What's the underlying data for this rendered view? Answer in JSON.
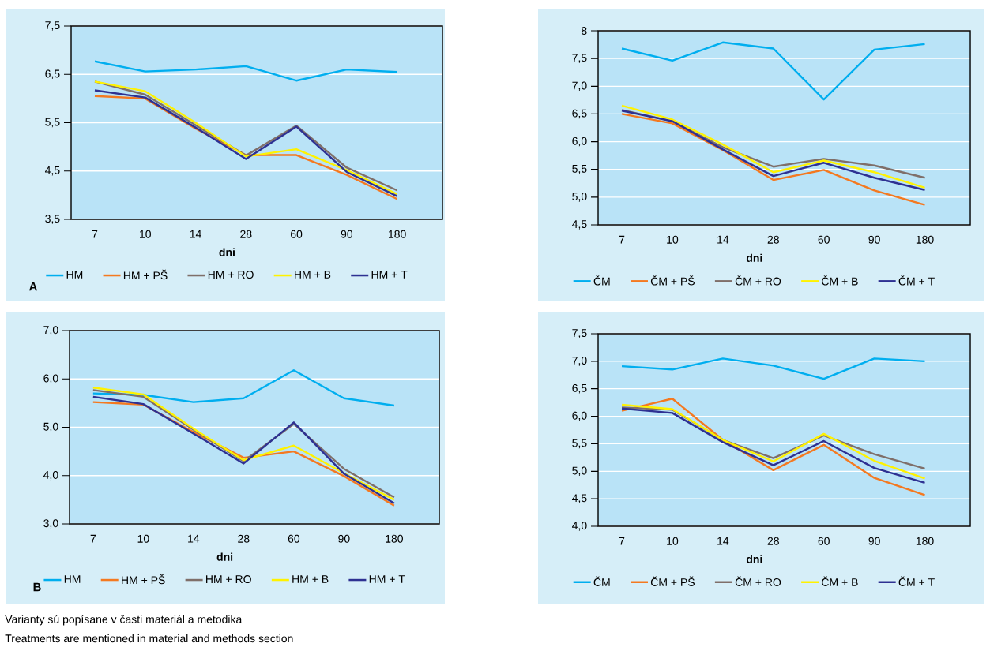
{
  "chart_data": [
    {
      "type": "line",
      "xlabel": "dni",
      "categories": [
        "7",
        "10",
        "14",
        "28",
        "60",
        "90",
        "180"
      ],
      "ylim": [
        3.5,
        7.5
      ],
      "yticks": [
        {
          "value": 3.5,
          "label": "3,5"
        },
        {
          "value": 4.5,
          "label": "4,5"
        },
        {
          "value": 5.5,
          "label": "5,5"
        },
        {
          "value": 6.5,
          "label": "6,5"
        },
        {
          "value": 7.5,
          "label": "7,5"
        }
      ],
      "grid": "y",
      "legend": "bottom",
      "annotations": [
        "A"
      ],
      "series": [
        {
          "name": "HM",
          "color": "#00aeef",
          "values": [
            6.77,
            6.56,
            6.6,
            6.67,
            6.37,
            6.6,
            6.55
          ]
        },
        {
          "name": "HM + PŠ",
          "color": "#f47920",
          "values": [
            6.05,
            6.0,
            5.38,
            4.83,
            4.83,
            4.42,
            3.92
          ]
        },
        {
          "name": "HM + RO",
          "color": "#7f6f6a",
          "values": [
            6.35,
            6.08,
            5.45,
            4.82,
            5.44,
            4.57,
            4.1
          ]
        },
        {
          "name": "HM + B",
          "color": "#fff200",
          "values": [
            6.35,
            6.15,
            5.5,
            4.8,
            4.95,
            4.52,
            4.02
          ]
        },
        {
          "name": "HM + T",
          "color": "#2e3192",
          "values": [
            6.17,
            6.02,
            5.4,
            4.75,
            5.42,
            4.48,
            3.98
          ]
        }
      ]
    },
    {
      "type": "line",
      "xlabel": "dni",
      "categories": [
        "7",
        "10",
        "14",
        "28",
        "60",
        "90",
        "180"
      ],
      "ylim": [
        4.5,
        8
      ],
      "yticks": [
        {
          "value": 4.5,
          "label": "4,5"
        },
        {
          "value": 5,
          "label": "5,0"
        },
        {
          "value": 5.5,
          "label": "5,5"
        },
        {
          "value": 6,
          "label": "6,0"
        },
        {
          "value": 6.5,
          "label": "6,5"
        },
        {
          "value": 7,
          "label": "7,0"
        },
        {
          "value": 7.5,
          "label": "7,5"
        },
        8
      ],
      "grid": "y",
      "legend": "bottom",
      "series": [
        {
          "name": "ČM",
          "color": "#00aeef",
          "values": [
            7.68,
            7.46,
            7.79,
            7.68,
            6.76,
            7.66,
            7.76
          ]
        },
        {
          "name": "ČM + PŠ",
          "color": "#f47920",
          "values": [
            6.5,
            6.33,
            5.85,
            5.31,
            5.49,
            5.12,
            4.86
          ]
        },
        {
          "name": "ČM + RO",
          "color": "#7f6f6a",
          "values": [
            6.57,
            6.37,
            5.9,
            5.55,
            5.69,
            5.57,
            5.35
          ]
        },
        {
          "name": "ČM + B",
          "color": "#fff200",
          "values": [
            6.65,
            6.4,
            5.95,
            5.45,
            5.66,
            5.45,
            5.17
          ]
        },
        {
          "name": "ČM + T",
          "color": "#2e3192",
          "values": [
            6.56,
            6.37,
            5.86,
            5.38,
            5.62,
            5.35,
            5.13
          ]
        }
      ]
    },
    {
      "type": "line",
      "xlabel": "dni",
      "categories": [
        "7",
        "10",
        "14",
        "28",
        "60",
        "90",
        "180"
      ],
      "ylim": [
        3,
        7
      ],
      "yticks": [
        {
          "value": 3,
          "label": "3,0"
        },
        {
          "value": 4,
          "label": "4,0"
        },
        {
          "value": 5,
          "label": "5,0"
        },
        {
          "value": 6,
          "label": "6,0"
        },
        {
          "value": 7,
          "label": "7,0"
        }
      ],
      "grid": "y",
      "legend": "bottom",
      "annotations": [
        "B",
        "Varianty sú popísane v časti materiál a metodika",
        "Treatments are mentioned in material and methods section"
      ],
      "series": [
        {
          "name": "HM",
          "color": "#00aeef",
          "values": [
            5.7,
            5.67,
            5.52,
            5.6,
            6.18,
            5.6,
            5.45
          ]
        },
        {
          "name": "HM + PŠ",
          "color": "#f47920",
          "values": [
            5.52,
            5.47,
            4.9,
            4.37,
            4.5,
            3.99,
            3.38
          ]
        },
        {
          "name": "HM + RO",
          "color": "#7f6f6a",
          "values": [
            5.77,
            5.63,
            4.95,
            4.3,
            5.07,
            4.14,
            3.55
          ]
        },
        {
          "name": "HM + B",
          "color": "#fff200",
          "values": [
            5.82,
            5.68,
            4.97,
            4.32,
            4.62,
            4.05,
            3.5
          ]
        },
        {
          "name": "HM + T",
          "color": "#2e3192",
          "values": [
            5.63,
            5.48,
            4.87,
            4.25,
            5.1,
            4.04,
            3.43
          ]
        }
      ]
    },
    {
      "type": "line",
      "xlabel": "dni",
      "categories": [
        "7",
        "10",
        "14",
        "28",
        "60",
        "90",
        "180"
      ],
      "ylim": [
        4,
        7.5
      ],
      "yticks": [
        {
          "value": 4,
          "label": "4,0"
        },
        {
          "value": 4.5,
          "label": "4,5"
        },
        {
          "value": 5,
          "label": "5,0"
        },
        {
          "value": 5.5,
          "label": "5,5"
        },
        {
          "value": 6,
          "label": "6,0"
        },
        {
          "value": 6.5,
          "label": "6,5"
        },
        {
          "value": 7,
          "label": "7,0"
        },
        {
          "value": 7.5,
          "label": "7,5"
        }
      ],
      "grid": "y",
      "legend": "bottom",
      "series": [
        {
          "name": "ČM",
          "color": "#00aeef",
          "values": [
            6.91,
            6.85,
            7.05,
            6.92,
            6.68,
            7.05,
            7.0
          ]
        },
        {
          "name": "ČM + PŠ",
          "color": "#f47920",
          "values": [
            6.1,
            6.32,
            5.57,
            5.02,
            5.48,
            4.88,
            4.57
          ]
        },
        {
          "name": "ČM + RO",
          "color": "#7f6f6a",
          "values": [
            6.16,
            6.12,
            5.57,
            5.24,
            5.65,
            5.31,
            5.05
          ]
        },
        {
          "name": "ČM + B",
          "color": "#fff200",
          "values": [
            6.21,
            6.13,
            5.57,
            5.18,
            5.68,
            5.19,
            4.87
          ]
        },
        {
          "name": "ČM + T",
          "color": "#2e3192",
          "values": [
            6.14,
            6.06,
            5.53,
            5.11,
            5.55,
            5.06,
            4.79
          ]
        }
      ]
    }
  ]
}
